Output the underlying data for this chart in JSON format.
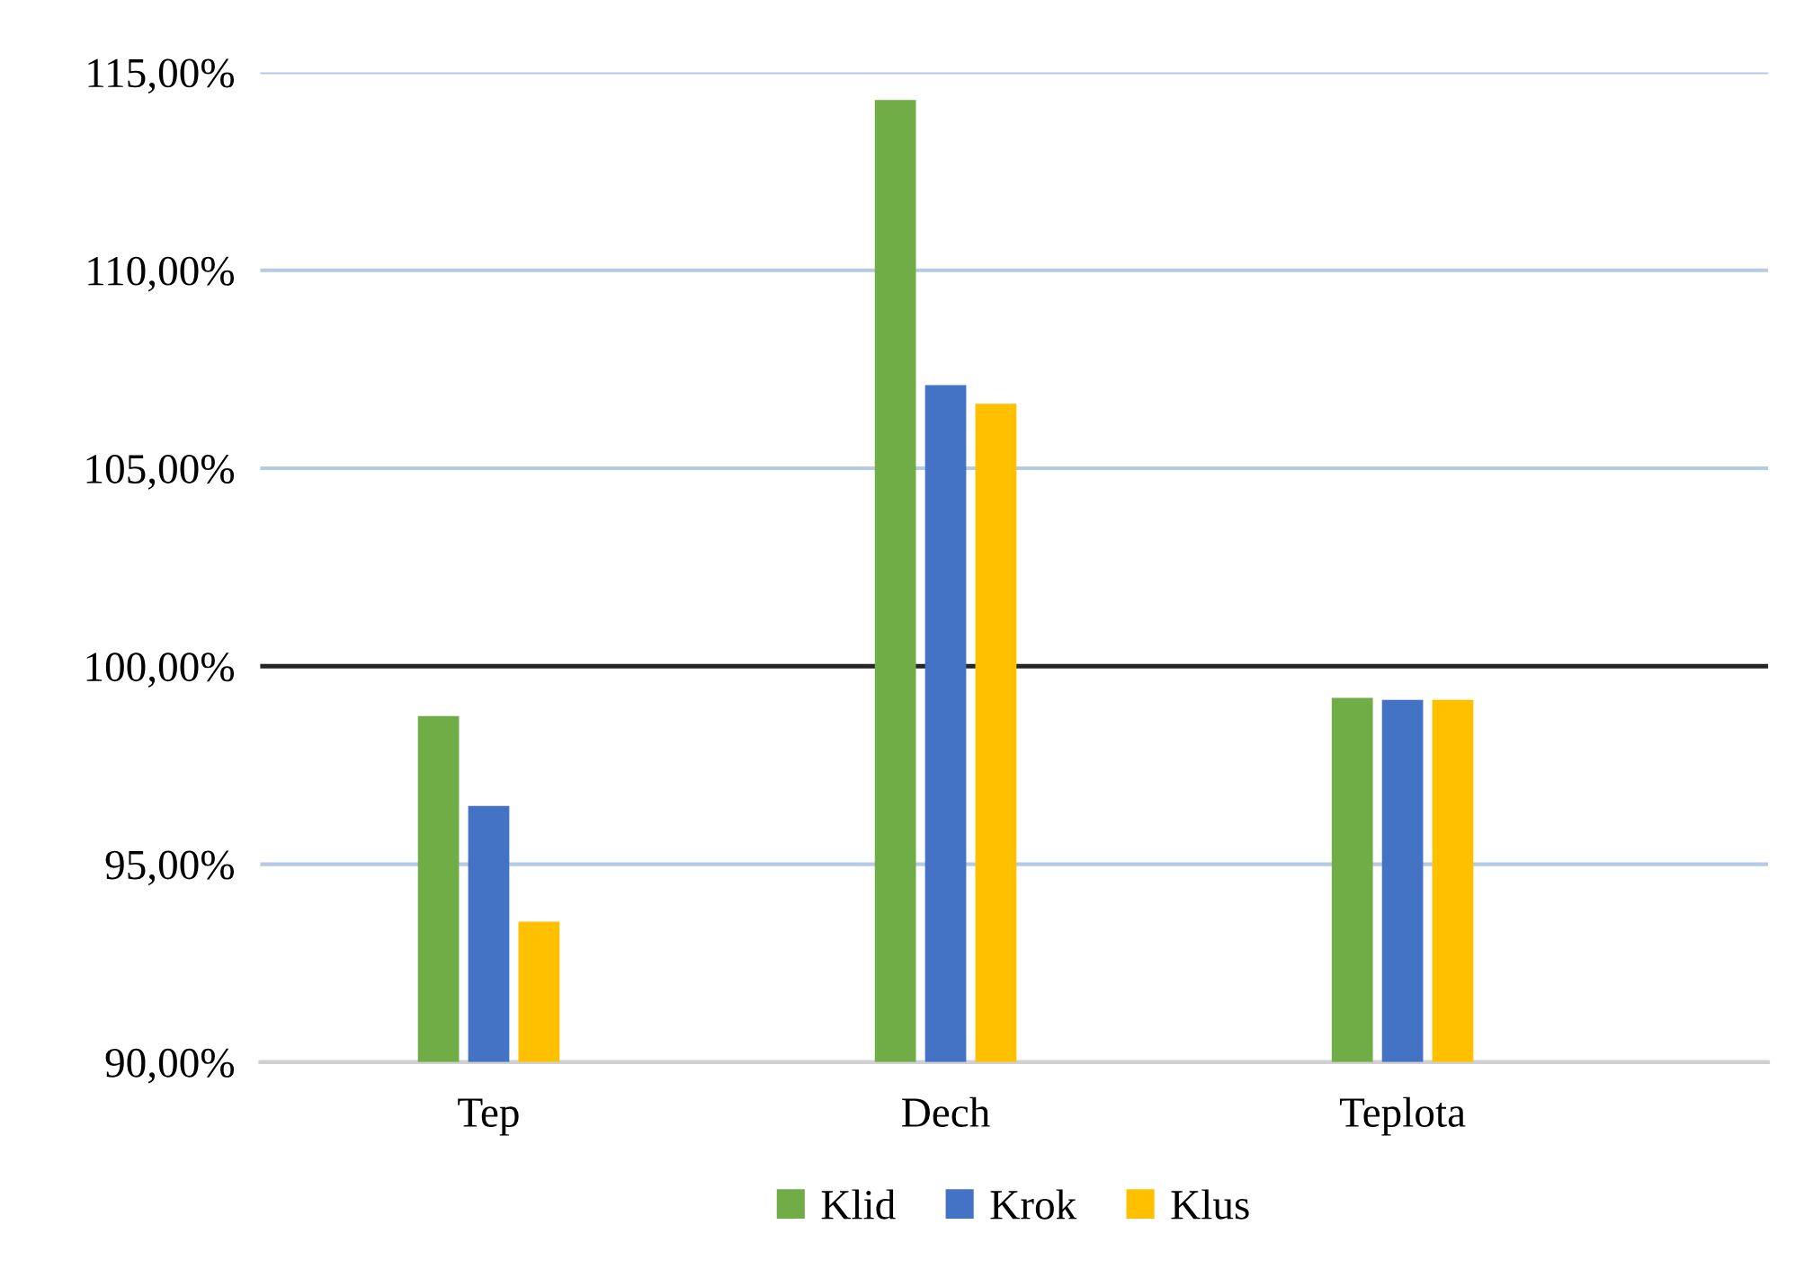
{
  "chart_data": {
    "type": "bar",
    "categories": [
      "Tep",
      "Dech",
      "Teplota"
    ],
    "series": [
      {
        "name": "Klid",
        "color": "#70ad47",
        "values": [
          98.74,
          114.3,
          99.2
        ]
      },
      {
        "name": "Krok",
        "color": "#4472c4",
        "values": [
          96.47,
          107.1,
          99.15
        ]
      },
      {
        "name": "Klus",
        "color": "#ffc000",
        "values": [
          93.55,
          106.63,
          99.15
        ]
      }
    ],
    "ylim": [
      90,
      115
    ],
    "yticks": [
      {
        "value": 90,
        "label": "90,00%"
      },
      {
        "value": 95,
        "label": "95,00%"
      },
      {
        "value": 100,
        "label": "100,00%"
      },
      {
        "value": 105,
        "label": "105,00%"
      },
      {
        "value": 110,
        "label": "110,00%"
      },
      {
        "value": 115,
        "label": "115,00%"
      }
    ],
    "ref_lines": [
      {
        "axis": "y",
        "value": 100,
        "label": null,
        "color": "#262626"
      }
    ],
    "grid": "y",
    "legend": "bottom"
  }
}
